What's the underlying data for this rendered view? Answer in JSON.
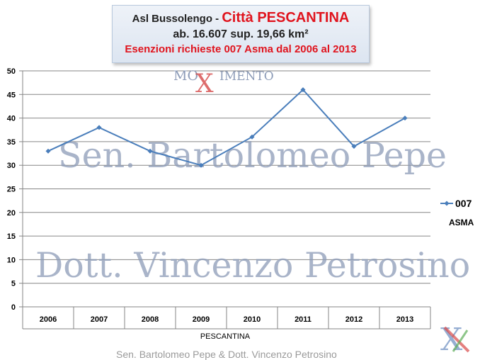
{
  "header": {
    "line1_prefix": "Asl Bussolengo - ",
    "line1_city": "Città PESCANTINA",
    "line2": "ab. 16.607 sup. 19,66 km²",
    "line3": "Esenzioni richieste 007 Asma dal 2006 al 2013"
  },
  "watermarks": {
    "logo_left": "MO",
    "logo_x": "X",
    "logo_right": "IMENTO",
    "line1": "Sen. Bartolomeo Pepe",
    "line2": "Dott. Vincenzo Petrosino",
    "footer": "Sen. Bartolomeo Pepe &  Dott. Vincenzo Petrosino"
  },
  "colors": {
    "series": "#4a7ebb",
    "grid": "#868686",
    "accent_red": "#e0141e"
  },
  "chart_data": {
    "type": "line",
    "categories": [
      "2006",
      "2007",
      "2008",
      "2009",
      "2010",
      "2011",
      "2012",
      "2013"
    ],
    "series": [
      {
        "name": "007",
        "sublabel": "ASMA",
        "values": [
          33,
          38,
          33,
          30,
          36,
          46,
          34,
          40
        ]
      }
    ],
    "xlabel": "PESCANTINA",
    "ylabel": "",
    "ylim": [
      0,
      50
    ],
    "yticks": [
      0,
      5,
      10,
      15,
      20,
      25,
      30,
      35,
      40,
      45,
      50
    ],
    "grid": true,
    "legend": "right"
  }
}
